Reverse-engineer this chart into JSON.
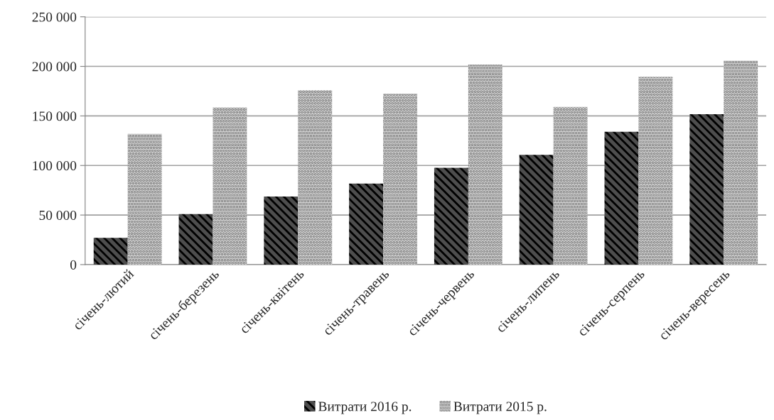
{
  "chart_data": {
    "type": "bar",
    "categories": [
      "січень-лютий",
      "січень-березень",
      "січень-квітень",
      "січень-травень",
      "січень-червень",
      "січень-липень",
      "січень-серпень",
      "січень-вересень"
    ],
    "series": [
      {
        "name": "Витрати 2016 р.",
        "color": "#4d4d4d",
        "values": [
          27000,
          51000,
          68700,
          81700,
          97600,
          110800,
          134000,
          151800
        ]
      },
      {
        "name": "Витрати 2015 р.",
        "color": "#d9d9d9",
        "values": [
          131800,
          158600,
          175900,
          172300,
          201900,
          159000,
          189400,
          205800
        ]
      }
    ],
    "ylim": [
      0,
      250000
    ],
    "yticks": [
      {
        "value": 0,
        "label": "0"
      },
      {
        "value": 50000,
        "label": "50 000"
      },
      {
        "value": 100000,
        "label": "100 000"
      },
      {
        "value": 150000,
        "label": "150 000"
      },
      {
        "value": 200000,
        "label": "200 000"
      },
      {
        "value": 250000,
        "label": "250 000"
      }
    ],
    "grid": "y",
    "legend": "bottom"
  }
}
